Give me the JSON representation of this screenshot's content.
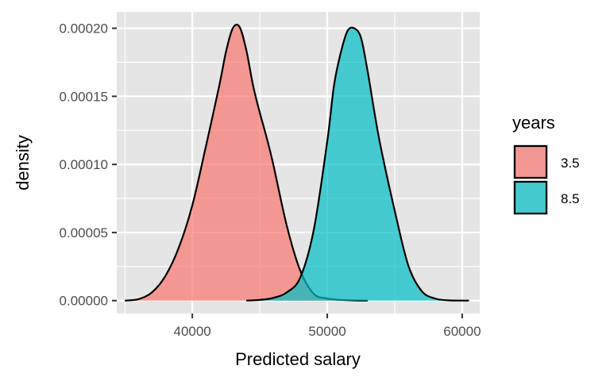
{
  "chart_data": {
    "type": "area",
    "subtype": "density",
    "title": "",
    "xlabel": "Predicted salary",
    "ylabel": "density",
    "xlim": [
      34400,
      61300
    ],
    "ylim": [
      -9.5e-06,
      0.000212
    ],
    "x_ticks": [
      40000,
      50000,
      60000
    ],
    "x_tick_labels": [
      "40000",
      "50000",
      "60000"
    ],
    "y_ticks": [
      0,
      5e-05,
      0.0001,
      0.00015,
      0.0002
    ],
    "y_tick_labels": [
      "0.00000",
      "0.00005",
      "0.00010",
      "0.00015",
      "0.00020"
    ],
    "grid": true,
    "panel_background": "#e5e5e5",
    "grid_color": "#ffffff",
    "fill_opacity": 0.7,
    "legend": {
      "title": "years",
      "position": "right",
      "entries": [
        "3.5",
        "8.5"
      ]
    },
    "series": [
      {
        "name": "3.5",
        "color": "#f8766d",
        "x": [
          35000,
          36000,
          37000,
          38000,
          39000,
          40000,
          41000,
          42000,
          42500,
          43000,
          43500,
          44000,
          44500,
          45000,
          45500,
          46000,
          47000,
          48000,
          49000,
          50000,
          51000,
          52000,
          53000
        ],
        "y": [
          0,
          1e-06,
          6e-06,
          1.8e-05,
          3.9e-05,
          7e-05,
          0.000113,
          0.000158,
          0.000183,
          0.0002,
          0.000201,
          0.000184,
          0.000158,
          0.000138,
          0.00012,
          0.0001,
          5.5e-05,
          2.2e-05,
          5e-06,
          1.5e-06,
          5e-07,
          1e-07,
          0
        ]
      },
      {
        "name": "8.5",
        "color": "#00bfc4",
        "x": [
          44000,
          45000,
          46000,
          47000,
          48000,
          49000,
          50000,
          50500,
          51000,
          51500,
          52000,
          52500,
          53000,
          53500,
          54000,
          55000,
          56000,
          57000,
          58000,
          59000,
          60500
        ],
        "y": [
          0,
          5e-07,
          2e-06,
          6e-06,
          1.7e-05,
          5.2e-05,
          0.000117,
          0.000158,
          0.000182,
          0.000198,
          0.0002,
          0.000193,
          0.000168,
          0.000138,
          0.000111,
          6.6e-05,
          2.6e-05,
          7e-06,
          1.5e-06,
          2e-07,
          0
        ]
      }
    ]
  }
}
